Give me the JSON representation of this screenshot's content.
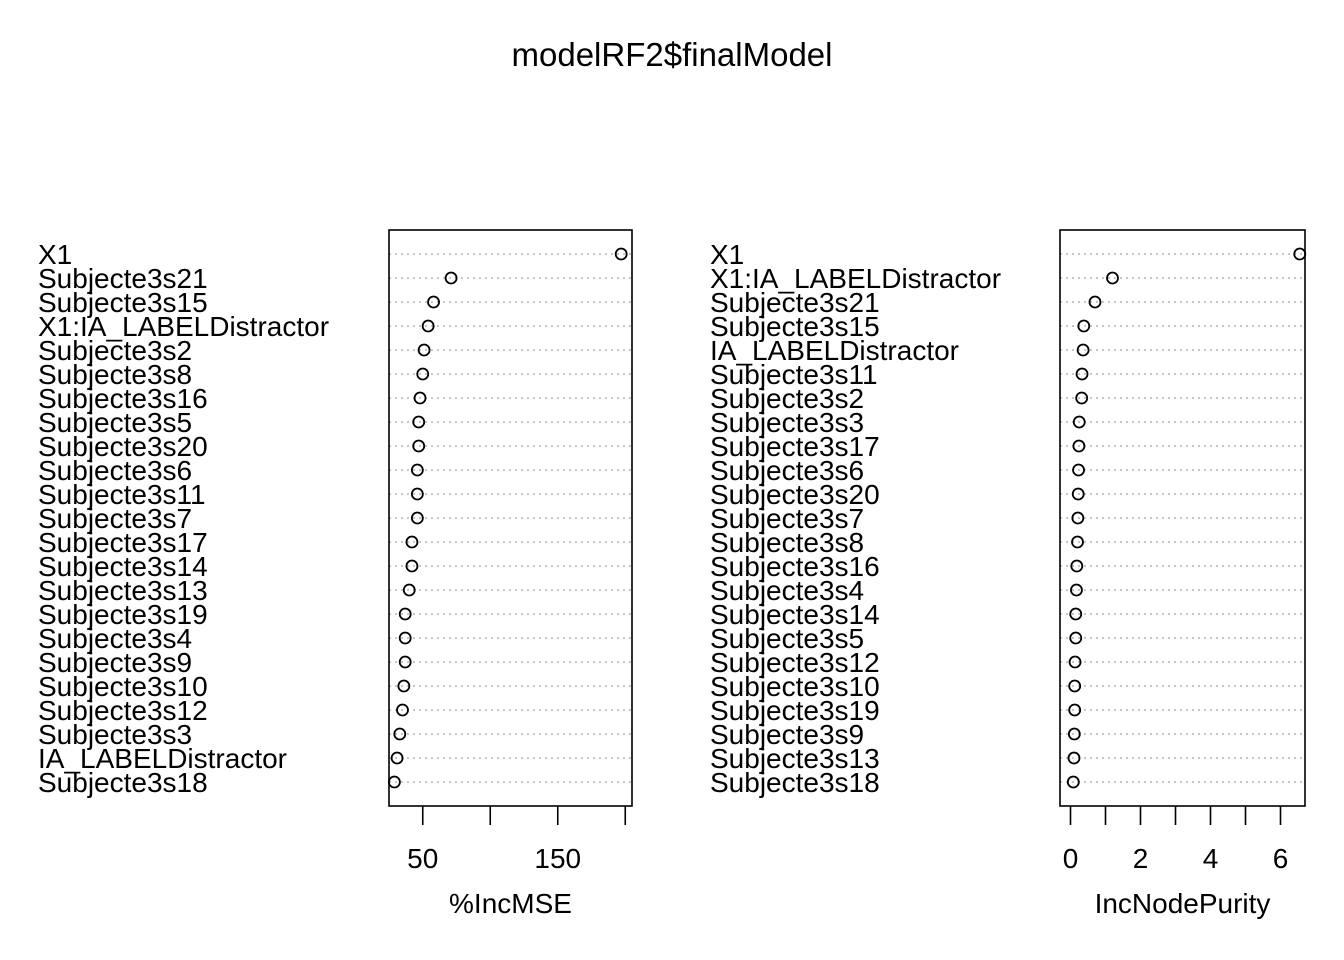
{
  "title": "modelRF2$finalModel",
  "chart_data": [
    {
      "type": "scatter",
      "subtype": "dotchart",
      "xlabel": "%IncMSE",
      "xticks": [
        50,
        100,
        150,
        200
      ],
      "xtick_labels": [
        "50",
        "",
        "150",
        ""
      ],
      "xlim": [
        25,
        205
      ],
      "grid": "horizontal dotted",
      "categories": [
        "X1",
        "Subjecte3s21",
        "Subjecte3s15",
        "X1:IA_LABELDistractor",
        "Subjecte3s2",
        "Subjecte3s8",
        "Subjecte3s16",
        "Subjecte3s5",
        "Subjecte3s20",
        "Subjecte3s6",
        "Subjecte3s11",
        "Subjecte3s7",
        "Subjecte3s17",
        "Subjecte3s14",
        "Subjecte3s13",
        "Subjecte3s19",
        "Subjecte3s4",
        "Subjecte3s9",
        "Subjecte3s10",
        "Subjecte3s12",
        "Subjecte3s3",
        "IA_LABELDistractor",
        "Subjecte3s18"
      ],
      "values": [
        197,
        71,
        58,
        54,
        51,
        50,
        48,
        47,
        47,
        46,
        46,
        46,
        42,
        42,
        40,
        37,
        37,
        37,
        36,
        35,
        33,
        31,
        29
      ]
    },
    {
      "type": "scatter",
      "subtype": "dotchart",
      "xlabel": "IncNodePurity",
      "xticks": [
        0,
        1,
        2,
        3,
        4,
        5,
        6
      ],
      "xtick_labels": [
        "0",
        "",
        "2",
        "",
        "4",
        "",
        "6"
      ],
      "xlim": [
        -0.3,
        6.7
      ],
      "grid": "horizontal dotted",
      "categories": [
        "X1",
        "X1:IA_LABELDistractor",
        "Subjecte3s21",
        "Subjecte3s15",
        "IA_LABELDistractor",
        "Subjecte3s11",
        "Subjecte3s2",
        "Subjecte3s3",
        "Subjecte3s17",
        "Subjecte3s6",
        "Subjecte3s20",
        "Subjecte3s7",
        "Subjecte3s8",
        "Subjecte3s16",
        "Subjecte3s4",
        "Subjecte3s14",
        "Subjecte3s5",
        "Subjecte3s12",
        "Subjecte3s10",
        "Subjecte3s19",
        "Subjecte3s9",
        "Subjecte3s13",
        "Subjecte3s18"
      ],
      "values": [
        6.55,
        1.2,
        0.7,
        0.38,
        0.36,
        0.33,
        0.32,
        0.25,
        0.24,
        0.23,
        0.22,
        0.21,
        0.2,
        0.18,
        0.17,
        0.15,
        0.15,
        0.13,
        0.12,
        0.12,
        0.11,
        0.1,
        0.08
      ]
    }
  ]
}
